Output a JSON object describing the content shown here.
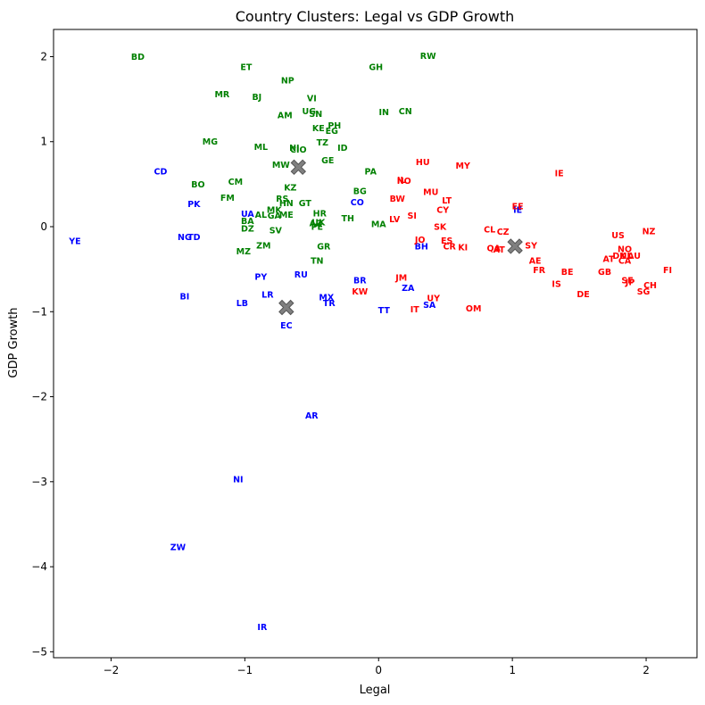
{
  "chart_data": {
    "type": "scatter",
    "title": "Country Clusters: Legal vs GDP Growth",
    "xlabel": "Legal",
    "ylabel": "GDP Growth",
    "xlim": [
      -2.43,
      2.38
    ],
    "ylim": [
      -5.07,
      2.32
    ],
    "xticks": [
      -2,
      -1,
      0,
      1,
      2
    ],
    "yticks": [
      -5,
      -4,
      -3,
      -2,
      -1,
      0,
      1,
      2
    ],
    "grid": false,
    "cluster_colors": {
      "0": "#0000ff",
      "1": "#008000",
      "2": "#ff0000"
    },
    "centroid_color": "#808080",
    "centroids": [
      {
        "x": -0.69,
        "y": -0.95
      },
      {
        "x": -0.6,
        "y": 0.7
      },
      {
        "x": 1.02,
        "y": -0.23
      }
    ],
    "points": [
      {
        "label": "BD",
        "x": -1.8,
        "y": 2.0,
        "cluster": 1
      },
      {
        "label": "ET",
        "x": -0.99,
        "y": 1.88,
        "cluster": 1
      },
      {
        "label": "NP",
        "x": -0.68,
        "y": 1.72,
        "cluster": 1
      },
      {
        "label": "GH",
        "x": -0.02,
        "y": 1.88,
        "cluster": 1
      },
      {
        "label": "RW",
        "x": 0.37,
        "y": 2.01,
        "cluster": 1
      },
      {
        "label": "MR",
        "x": -1.17,
        "y": 1.56,
        "cluster": 1
      },
      {
        "label": "BJ",
        "x": -0.91,
        "y": 1.53,
        "cluster": 1
      },
      {
        "label": "VI",
        "x": -0.5,
        "y": 1.51,
        "cluster": 1
      },
      {
        "label": "AM",
        "x": -0.7,
        "y": 1.31,
        "cluster": 1
      },
      {
        "label": "UG",
        "x": -0.52,
        "y": 1.36,
        "cluster": 1
      },
      {
        "label": "SN",
        "x": -0.47,
        "y": 1.33,
        "cluster": 1
      },
      {
        "label": "IN",
        "x": 0.04,
        "y": 1.35,
        "cluster": 1
      },
      {
        "label": "CN",
        "x": 0.2,
        "y": 1.36,
        "cluster": 1
      },
      {
        "label": "PH",
        "x": -0.33,
        "y": 1.19,
        "cluster": 1
      },
      {
        "label": "KE",
        "x": -0.45,
        "y": 1.16,
        "cluster": 1
      },
      {
        "label": "EG",
        "x": -0.35,
        "y": 1.13,
        "cluster": 1
      },
      {
        "label": "MG",
        "x": -1.26,
        "y": 1.0,
        "cluster": 1
      },
      {
        "label": "TZ",
        "x": -0.42,
        "y": 0.99,
        "cluster": 1
      },
      {
        "label": "ML",
        "x": -0.88,
        "y": 0.94,
        "cluster": 1
      },
      {
        "label": "NI",
        "x": -0.63,
        "y": 0.93,
        "cluster": 1
      },
      {
        "label": "CIO",
        "x": -0.6,
        "y": 0.91,
        "cluster": 1
      },
      {
        "label": "ID",
        "x": -0.27,
        "y": 0.93,
        "cluster": 1
      },
      {
        "label": "GE",
        "x": -0.38,
        "y": 0.78,
        "cluster": 1
      },
      {
        "label": "MW",
        "x": -0.73,
        "y": 0.73,
        "cluster": 1
      },
      {
        "label": "PA",
        "x": -0.06,
        "y": 0.65,
        "cluster": 1
      },
      {
        "label": "BO",
        "x": -1.35,
        "y": 0.5,
        "cluster": 1
      },
      {
        "label": "CM",
        "x": -1.07,
        "y": 0.53,
        "cluster": 1
      },
      {
        "label": "KZ",
        "x": -0.66,
        "y": 0.46,
        "cluster": 1
      },
      {
        "label": "BG",
        "x": -0.14,
        "y": 0.42,
        "cluster": 1
      },
      {
        "label": "FM",
        "x": -1.13,
        "y": 0.34,
        "cluster": 1
      },
      {
        "label": "RS",
        "x": -0.72,
        "y": 0.33,
        "cluster": 1
      },
      {
        "label": "HN",
        "x": -0.69,
        "y": 0.28,
        "cluster": 1
      },
      {
        "label": "GT",
        "x": -0.55,
        "y": 0.28,
        "cluster": 1
      },
      {
        "label": "MK",
        "x": -0.78,
        "y": 0.2,
        "cluster": 1
      },
      {
        "label": "AL",
        "x": -0.88,
        "y": 0.14,
        "cluster": 1
      },
      {
        "label": "GA",
        "x": -0.78,
        "y": 0.13,
        "cluster": 1
      },
      {
        "label": "ME",
        "x": -0.69,
        "y": 0.14,
        "cluster": 1
      },
      {
        "label": "HR",
        "x": -0.44,
        "y": 0.16,
        "cluster": 1
      },
      {
        "label": "TH",
        "x": -0.23,
        "y": 0.1,
        "cluster": 1
      },
      {
        "label": "BA",
        "x": -0.98,
        "y": 0.07,
        "cluster": 1
      },
      {
        "label": "AZ",
        "x": -0.47,
        "y": 0.04,
        "cluster": 1
      },
      {
        "label": "UK",
        "x": -0.45,
        "y": 0.05,
        "cluster": 1
      },
      {
        "label": "PE",
        "x": -0.46,
        "y": 0.0,
        "cluster": 1
      },
      {
        "label": "MA",
        "x": 0.0,
        "y": 0.03,
        "cluster": 1
      },
      {
        "label": "DZ",
        "x": -0.98,
        "y": -0.02,
        "cluster": 1
      },
      {
        "label": "SV",
        "x": -0.77,
        "y": -0.04,
        "cluster": 1
      },
      {
        "label": "ZM",
        "x": -0.86,
        "y": -0.22,
        "cluster": 1
      },
      {
        "label": "GR",
        "x": -0.41,
        "y": -0.23,
        "cluster": 1
      },
      {
        "label": "MZ",
        "x": -1.01,
        "y": -0.29,
        "cluster": 1
      },
      {
        "label": "TN",
        "x": -0.46,
        "y": -0.4,
        "cluster": 1
      },
      {
        "label": "CD",
        "x": -1.63,
        "y": 0.65,
        "cluster": 0
      },
      {
        "label": "PK",
        "x": -1.38,
        "y": 0.27,
        "cluster": 0
      },
      {
        "label": "UA",
        "x": -0.98,
        "y": 0.15,
        "cluster": 0
      },
      {
        "label": "CO",
        "x": -0.16,
        "y": 0.29,
        "cluster": 0
      },
      {
        "label": "YE",
        "x": -2.27,
        "y": -0.17,
        "cluster": 0
      },
      {
        "label": "NG",
        "x": -1.45,
        "y": -0.12,
        "cluster": 0
      },
      {
        "label": "TD",
        "x": -1.38,
        "y": -0.12,
        "cluster": 0
      },
      {
        "label": "BH",
        "x": 0.32,
        "y": -0.23,
        "cluster": 0
      },
      {
        "label": "IE",
        "x": 1.04,
        "y": 0.2,
        "cluster": 0
      },
      {
        "label": "PY",
        "x": -0.88,
        "y": -0.59,
        "cluster": 0
      },
      {
        "label": "RU",
        "x": -0.58,
        "y": -0.56,
        "cluster": 0
      },
      {
        "label": "BR",
        "x": -0.14,
        "y": -0.63,
        "cluster": 0
      },
      {
        "label": "ZA",
        "x": 0.22,
        "y": -0.72,
        "cluster": 0
      },
      {
        "label": "BI",
        "x": -1.45,
        "y": -0.82,
        "cluster": 0
      },
      {
        "label": "LR",
        "x": -0.83,
        "y": -0.8,
        "cluster": 0
      },
      {
        "label": "MX",
        "x": -0.39,
        "y": -0.83,
        "cluster": 0
      },
      {
        "label": "TR",
        "x": -0.37,
        "y": -0.9,
        "cluster": 0
      },
      {
        "label": "LB",
        "x": -1.02,
        "y": -0.9,
        "cluster": 0
      },
      {
        "label": "SA",
        "x": 0.38,
        "y": -0.92,
        "cluster": 0
      },
      {
        "label": "TT",
        "x": 0.04,
        "y": -0.98,
        "cluster": 0
      },
      {
        "label": "EC",
        "x": -0.69,
        "y": -1.16,
        "cluster": 0
      },
      {
        "label": "AR",
        "x": -0.5,
        "y": -2.22,
        "cluster": 0
      },
      {
        "label": "NI",
        "x": -1.05,
        "y": -2.97,
        "cluster": 0
      },
      {
        "label": "ZW",
        "x": -1.5,
        "y": -3.77,
        "cluster": 0
      },
      {
        "label": "IR",
        "x": -0.87,
        "y": -4.71,
        "cluster": 0
      },
      {
        "label": "HU",
        "x": 0.33,
        "y": 0.76,
        "cluster": 2
      },
      {
        "label": "MY",
        "x": 0.63,
        "y": 0.72,
        "cluster": 2
      },
      {
        "label": "IE",
        "x": 1.35,
        "y": 0.63,
        "cluster": 2
      },
      {
        "label": "IL",
        "x": 0.17,
        "y": 0.55,
        "cluster": 2
      },
      {
        "label": "NO",
        "x": 0.19,
        "y": 0.54,
        "cluster": 2
      },
      {
        "label": "MU",
        "x": 0.39,
        "y": 0.41,
        "cluster": 2
      },
      {
        "label": "BW",
        "x": 0.14,
        "y": 0.33,
        "cluster": 2
      },
      {
        "label": "LT",
        "x": 0.51,
        "y": 0.31,
        "cluster": 2
      },
      {
        "label": "EE",
        "x": 1.04,
        "y": 0.24,
        "cluster": 2
      },
      {
        "label": "CY",
        "x": 0.48,
        "y": 0.2,
        "cluster": 2
      },
      {
        "label": "SI",
        "x": 0.25,
        "y": 0.13,
        "cluster": 2
      },
      {
        "label": "LV",
        "x": 0.12,
        "y": 0.09,
        "cluster": 2
      },
      {
        "label": "SK",
        "x": 0.46,
        "y": 0.0,
        "cluster": 2
      },
      {
        "label": "CL",
        "x": 0.83,
        "y": -0.03,
        "cluster": 2
      },
      {
        "label": "CZ",
        "x": 0.93,
        "y": -0.06,
        "cluster": 2
      },
      {
        "label": "JO",
        "x": 0.31,
        "y": -0.15,
        "cluster": 2
      },
      {
        "label": "ES",
        "x": 0.51,
        "y": -0.16,
        "cluster": 2
      },
      {
        "label": "CR",
        "x": 0.53,
        "y": -0.23,
        "cluster": 2
      },
      {
        "label": "KI",
        "x": 0.63,
        "y": -0.24,
        "cluster": 2
      },
      {
        "label": "QA",
        "x": 0.86,
        "y": -0.25,
        "cluster": 2
      },
      {
        "label": "AT",
        "x": 0.9,
        "y": -0.27,
        "cluster": 2
      },
      {
        "label": "SY",
        "x": 1.14,
        "y": -0.22,
        "cluster": 2
      },
      {
        "label": "US",
        "x": 1.79,
        "y": -0.1,
        "cluster": 2
      },
      {
        "label": "NZ",
        "x": 2.02,
        "y": -0.05,
        "cluster": 2
      },
      {
        "label": "NO",
        "x": 1.84,
        "y": -0.26,
        "cluster": 2
      },
      {
        "label": "DK",
        "x": 1.8,
        "y": -0.34,
        "cluster": 2
      },
      {
        "label": "NL",
        "x": 1.85,
        "y": -0.34,
        "cluster": 2
      },
      {
        "label": "AU",
        "x": 1.91,
        "y": -0.34,
        "cluster": 2
      },
      {
        "label": "AT",
        "x": 1.72,
        "y": -0.38,
        "cluster": 2
      },
      {
        "label": "CA",
        "x": 1.84,
        "y": -0.4,
        "cluster": 2
      },
      {
        "label": "AE",
        "x": 1.17,
        "y": -0.4,
        "cluster": 2
      },
      {
        "label": "FR",
        "x": 1.2,
        "y": -0.51,
        "cluster": 2
      },
      {
        "label": "BE",
        "x": 1.41,
        "y": -0.53,
        "cluster": 2
      },
      {
        "label": "GB",
        "x": 1.69,
        "y": -0.53,
        "cluster": 2
      },
      {
        "label": "FI",
        "x": 2.16,
        "y": -0.51,
        "cluster": 2
      },
      {
        "label": "JM",
        "x": 0.17,
        "y": -0.6,
        "cluster": 2
      },
      {
        "label": "SE",
        "x": 1.86,
        "y": -0.63,
        "cluster": 2
      },
      {
        "label": "JP",
        "x": 1.88,
        "y": -0.65,
        "cluster": 2
      },
      {
        "label": "IS",
        "x": 1.33,
        "y": -0.67,
        "cluster": 2
      },
      {
        "label": "CH",
        "x": 2.03,
        "y": -0.69,
        "cluster": 2
      },
      {
        "label": "KW",
        "x": -0.14,
        "y": -0.76,
        "cluster": 2
      },
      {
        "label": "SG",
        "x": 1.98,
        "y": -0.76,
        "cluster": 2
      },
      {
        "label": "DE",
        "x": 1.53,
        "y": -0.79,
        "cluster": 2
      },
      {
        "label": "UY",
        "x": 0.41,
        "y": -0.84,
        "cluster": 2
      },
      {
        "label": "IT",
        "x": 0.27,
        "y": -0.97,
        "cluster": 2
      },
      {
        "label": "OM",
        "x": 0.71,
        "y": -0.96,
        "cluster": 2
      }
    ]
  }
}
